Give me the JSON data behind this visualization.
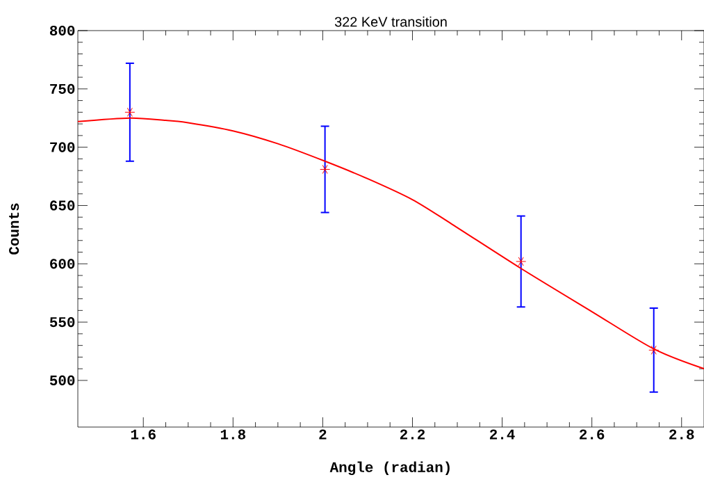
{
  "chart_data": {
    "type": "scatter",
    "title": "322 KeV transition",
    "xlabel": "Angle (radian)",
    "ylabel": "Counts",
    "xlim": [
      1.454,
      2.85
    ],
    "ylim": [
      460,
      800
    ],
    "xticks": [
      1.6,
      1.8,
      2,
      2.2,
      2.4,
      2.6,
      2.8
    ],
    "yticks": [
      500,
      550,
      600,
      650,
      700,
      750,
      800
    ],
    "grid": false,
    "marker": "cross",
    "series": [
      {
        "color": "#ff0000",
        "x": [
          1.57,
          2.005,
          2.442,
          2.738
        ],
        "values": [
          730,
          681,
          602,
          526
        ],
        "errors": [
          42,
          37,
          39,
          36
        ]
      },
      {
        "type": "line",
        "color": "#ff0000",
        "marker": "none",
        "line_style": "solid",
        "x": [
          1.454,
          1.57,
          1.65,
          1.7,
          1.8,
          1.9,
          2.005,
          2.1,
          2.2,
          2.288,
          2.442,
          2.6,
          2.738,
          2.85
        ],
        "values": [
          722,
          725,
          723,
          721,
          714,
          703,
          688,
          673,
          655,
          634,
          596,
          559,
          527,
          510
        ]
      }
    ]
  }
}
